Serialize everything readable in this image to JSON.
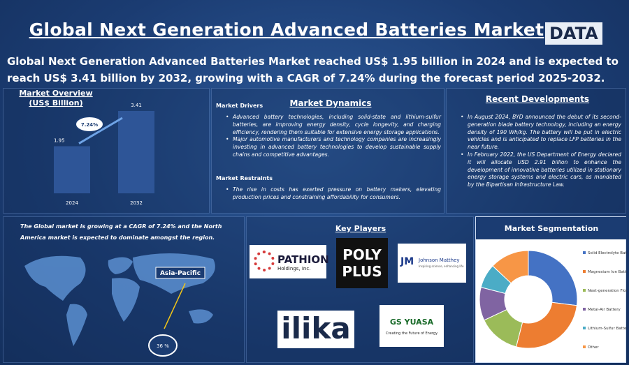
{
  "header": {
    "title": "Global Next Generation Advanced Batteries Market",
    "logo": "DATA",
    "summary": "Global Next Generation Advanced Batteries Market reached US$ 1.95 billion in 2024 and is expected to reach US$ 3.41 billion by 2032, growing with a CAGR of 7.24% during the forecast period 2025-2032."
  },
  "market_overview": {
    "chart_data": {
      "type": "bar",
      "title": "Market Overview",
      "subtitle": "(US$ Billion)",
      "categories": [
        "2024",
        "2032"
      ],
      "values": [
        1.95,
        3.41
      ],
      "color": "#2e5597",
      "annotation": "7.24%"
    }
  },
  "market_dynamics": {
    "title": "Market Dynamics",
    "drivers_heading": "Market Drivers",
    "drivers": [
      "Advanced battery technologies, including solid-state and lithium-sulfur batteries, are improving energy density, cycle longevity, and charging efficiency, rendering them suitable for extensive energy storage applications.",
      "Major automotive manufacturers and technology companies are increasingly investing in advanced battery technologies to develop sustainable supply chains and competitive advantages."
    ],
    "restraints_heading": "Market Restraints",
    "restraints": [
      "The rise in costs has exerted pressure on battery makers, elevating production prices and constraining affordability for consumers."
    ]
  },
  "recent_developments": {
    "title": "Recent Developments",
    "items": [
      "In August 2024, BYD announced the debut of its second-generation blade battery technology, including an energy density of 190 Wh/kg. The battery will be put in electric vehicles and is anticipated to replace LFP batteries in the near future.",
      "In February 2022, the US Department of Energy declared it will allocate USD 2.91 billion to enhance the development of innovative batteries utilized in stationary energy storage systems and electric cars, as mandated by the Bipartisan Infrastructure Law."
    ]
  },
  "regional": {
    "caption": "The Global market is growing at a CAGR of 7.24% and the North America market is expected to dominate amongst the region.",
    "region": "Asia-Pacific",
    "share": "36 %"
  },
  "key_players": {
    "title": "Key Players",
    "pathion": [
      "PATHION",
      "Holdings, Inc."
    ],
    "polyplus": [
      "POLY",
      "PLUS"
    ],
    "johnson_matthey": [
      "JM",
      "Johnson Matthey",
      "Inspiring science, enhancing life"
    ],
    "ilika": "ilika",
    "gs_yuasa": [
      "GS YUASA",
      "Creating the Future of Energy"
    ]
  },
  "market_segmentation": {
    "chart_data": {
      "type": "pie",
      "title": "Market Segmentation",
      "categories": [
        "Solid Electrolyte Battery",
        "Magnesium Ion Battery",
        "Next-generation Flow Battery",
        "Metal-Air Battery",
        "Lithium-Sulfur Battery",
        "Other"
      ],
      "values": [
        27,
        27,
        14,
        11,
        8,
        13
      ],
      "colors": [
        "#4472c4",
        "#ed7d31",
        "#9bbb59",
        "#8064a2",
        "#4bacc6",
        "#f79646"
      ]
    }
  }
}
